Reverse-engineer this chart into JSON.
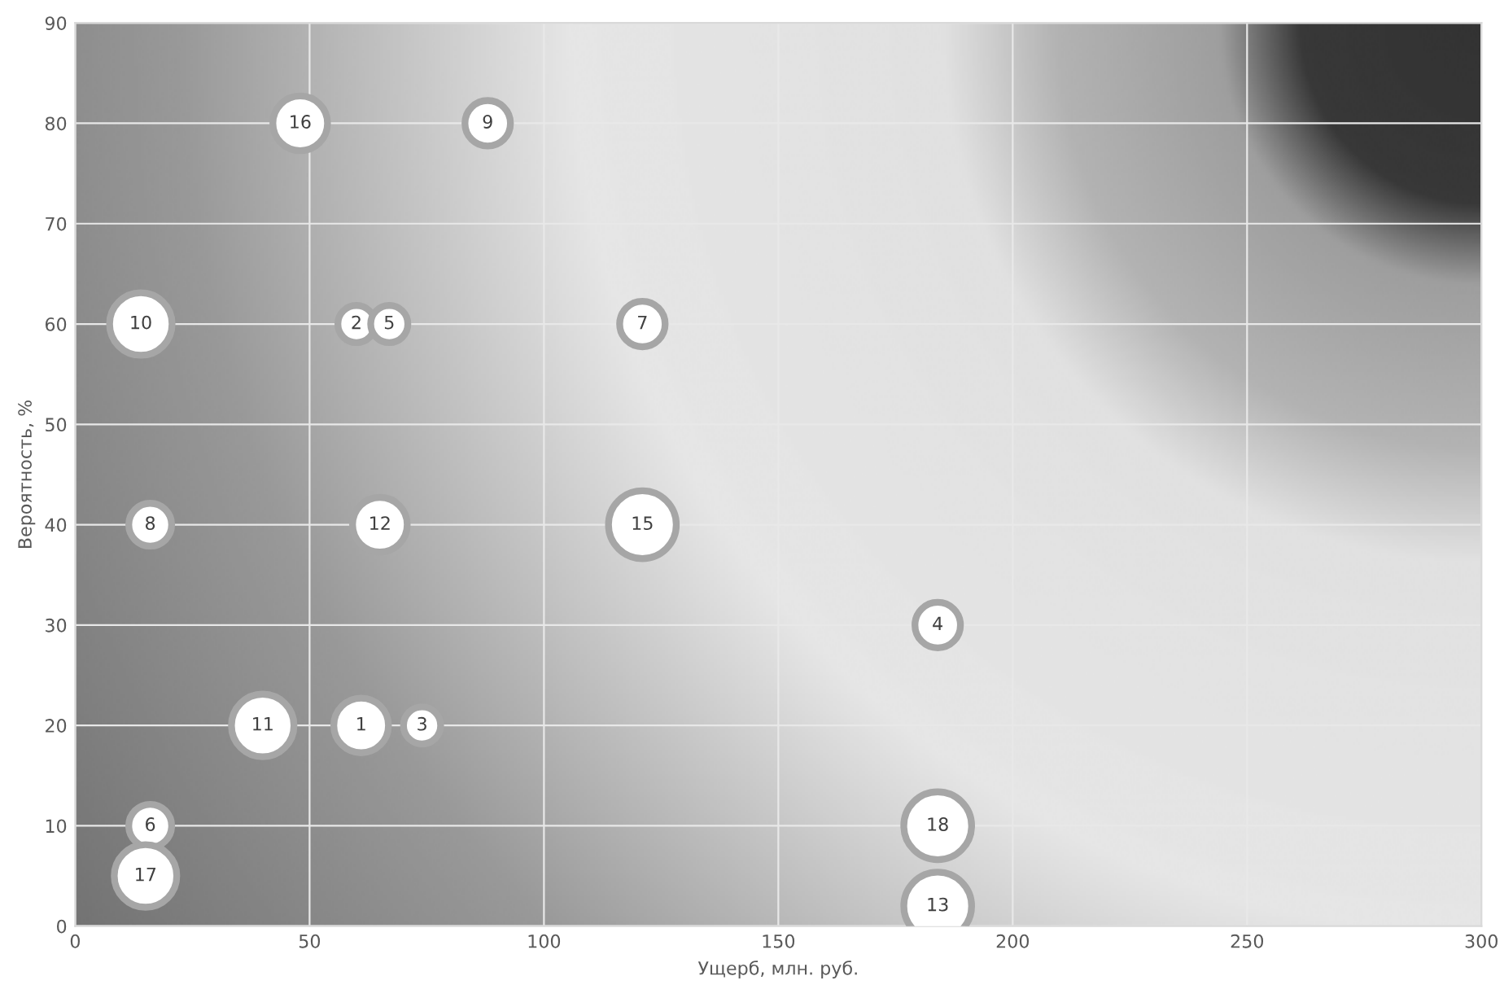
{
  "chart_data": {
    "type": "bubble",
    "xlabel": "Ущерб, млн. руб.",
    "ylabel": "Вероятность, %",
    "x": [
      61,
      60,
      74,
      184,
      67,
      16,
      121,
      16,
      88,
      14,
      40,
      65,
      184,
      121,
      48,
      15,
      184
    ],
    "series": [
      {
        "color": "#ffffff",
        "values": [
          20,
          60,
          20,
          30,
          60,
          10,
          60,
          40,
          80,
          60,
          20,
          40,
          2,
          40,
          80,
          5,
          10
        ],
        "sizes": [
          0.65,
          0.3,
          0.3,
          0.45,
          0.3,
          0.4,
          0.45,
          0.4,
          0.45,
          0.85,
          0.85,
          0.65,
          1,
          1,
          0.65,
          0.85,
          1
        ]
      }
    ],
    "annotations": [
      {
        "text": "1",
        "x": 61,
        "y": 20
      },
      {
        "text": "2",
        "x": 60,
        "y": 60
      },
      {
        "text": "3",
        "x": 74,
        "y": 20
      },
      {
        "text": "4",
        "x": 184,
        "y": 30
      },
      {
        "text": "5",
        "x": 67,
        "y": 60
      },
      {
        "text": "6",
        "x": 16,
        "y": 10
      },
      {
        "text": "7",
        "x": 121,
        "y": 60
      },
      {
        "text": "8",
        "x": 16,
        "y": 40
      },
      {
        "text": "9",
        "x": 88,
        "y": 80
      },
      {
        "text": "10",
        "x": 14,
        "y": 60
      },
      {
        "text": "11",
        "x": 40,
        "y": 20
      },
      {
        "text": "12",
        "x": 65,
        "y": 40
      },
      {
        "text": "13",
        "x": 184,
        "y": 2
      },
      {
        "text": "15",
        "x": 121,
        "y": 40
      },
      {
        "text": "16",
        "x": 48,
        "y": 80
      },
      {
        "text": "17",
        "x": 15,
        "y": 5
      },
      {
        "text": "18",
        "x": 184,
        "y": 10
      }
    ],
    "xlim": [
      0,
      300
    ],
    "ylim": [
      0,
      90
    ],
    "xticks": [
      0,
      50,
      100,
      150,
      200,
      250,
      300
    ],
    "yticks": [
      0,
      10,
      20,
      30,
      40,
      50,
      60,
      70,
      80,
      90
    ],
    "grid": true,
    "marker": "circle",
    "legend": false
  }
}
